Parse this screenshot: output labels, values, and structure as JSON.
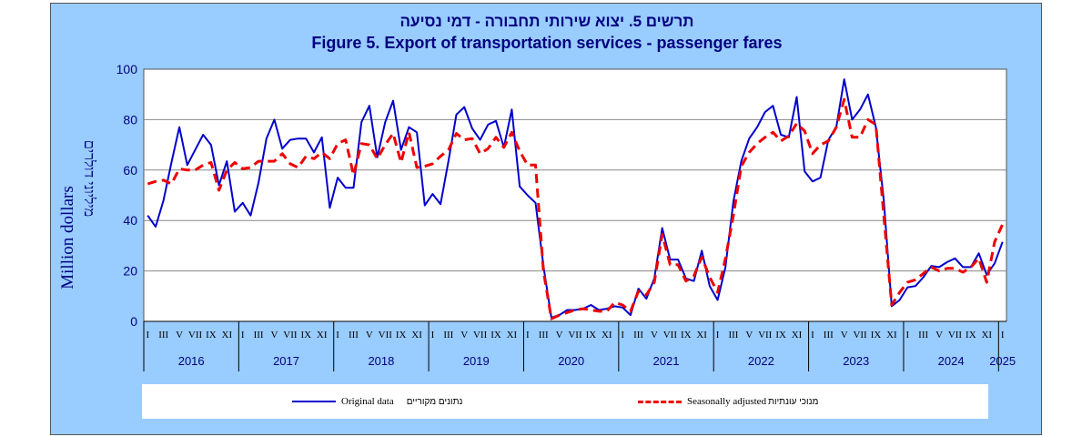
{
  "title_he": "תרשים 5. יצוא שירותי תחבורה - דמי נסיעה",
  "title_en": "Figure 5. Export of transportation services - passenger fares",
  "ylabel_en": "Million dollars",
  "ylabel_he": "מיליוני דולרים",
  "colors": {
    "background": "#99ccff",
    "plot_bg": "#ffffff",
    "original": "#0000cc",
    "adjusted": "#ee0000",
    "text": "#000080"
  },
  "legend": {
    "original_en": "Original data",
    "original_he": "נתונים מקוריים",
    "adjusted_en": "Seasonally adjusted",
    "adjusted_he": "מנוכי עונתיות"
  },
  "chart_data": {
    "type": "line",
    "ylim": [
      0,
      100
    ],
    "yticks": [
      0,
      20,
      40,
      60,
      80,
      100
    ],
    "grid": true,
    "legend_position": "bottom",
    "month_labels": [
      "I",
      "III",
      "V",
      "VII",
      "IX",
      "XI"
    ],
    "years": [
      "2016",
      "2017",
      "2018",
      "2019",
      "2020",
      "2021",
      "2022",
      "2023",
      "2024",
      "2025"
    ],
    "x_start": "2016-01",
    "series": [
      {
        "name": "Original data",
        "values": [
          42,
          37.5,
          48,
          63,
          77,
          62,
          68,
          74,
          70,
          54,
          63.5,
          43.5,
          47,
          42,
          55,
          72.5,
          80,
          68.5,
          72,
          72.5,
          72.5,
          67,
          73,
          45,
          57,
          53,
          53,
          79,
          85.5,
          65,
          79,
          87.5,
          68,
          77,
          75,
          46,
          50.5,
          46.5,
          63.5,
          82,
          85,
          76.5,
          72,
          78,
          79.5,
          69,
          84,
          53.5,
          50,
          47,
          22,
          1.5,
          2.5,
          4.5,
          4.5,
          5,
          6.5,
          4.5,
          5,
          6,
          5.5,
          2.5,
          13,
          9,
          17,
          37,
          24.5,
          24.5,
          17,
          16,
          28,
          14,
          8.5,
          21.5,
          47.5,
          63.5,
          72.5,
          77,
          83,
          85.5,
          74,
          73,
          89,
          59.5,
          55.5,
          57,
          72,
          77,
          96,
          80,
          84,
          90,
          77,
          48,
          6,
          8.5,
          13.5,
          14,
          17.5,
          22,
          21.5,
          23.5,
          25,
          21.5,
          21.5,
          27,
          18.5,
          23,
          31.5
        ],
        "color": "#0000cc",
        "dash": "solid"
      },
      {
        "name": "Seasonally adjusted",
        "values": [
          54.5,
          55.5,
          56,
          54.5,
          60.5,
          60,
          60,
          62,
          63,
          52,
          60,
          63,
          60.5,
          61,
          63.5,
          63.5,
          63.5,
          66.5,
          62.5,
          61,
          65.5,
          64.5,
          67,
          64.5,
          70.5,
          72,
          58,
          70.5,
          70,
          64.5,
          70,
          74.5,
          63,
          75,
          61,
          61.5,
          62.5,
          65.5,
          68,
          74.5,
          72,
          72.5,
          66.5,
          68.5,
          73,
          69,
          75,
          67.5,
          62,
          62,
          20,
          1,
          2.5,
          3.5,
          4.5,
          5,
          4.5,
          4,
          4,
          7.5,
          6.5,
          4,
          12,
          10.5,
          15.5,
          34.5,
          22.5,
          22.5,
          16,
          18,
          25.5,
          17.5,
          11.5,
          25,
          42,
          61.5,
          67,
          70.5,
          73,
          75,
          71.5,
          73.5,
          78.5,
          75.5,
          66.5,
          70,
          71.5,
          77,
          88,
          73,
          73,
          80,
          78,
          42,
          6.5,
          11.5,
          15.5,
          16.5,
          19,
          21.5,
          20,
          21,
          21,
          19.5,
          21.5,
          25,
          15.5,
          31.5,
          38.5
        ],
        "color": "#ee0000",
        "dash": "dashed"
      }
    ]
  }
}
